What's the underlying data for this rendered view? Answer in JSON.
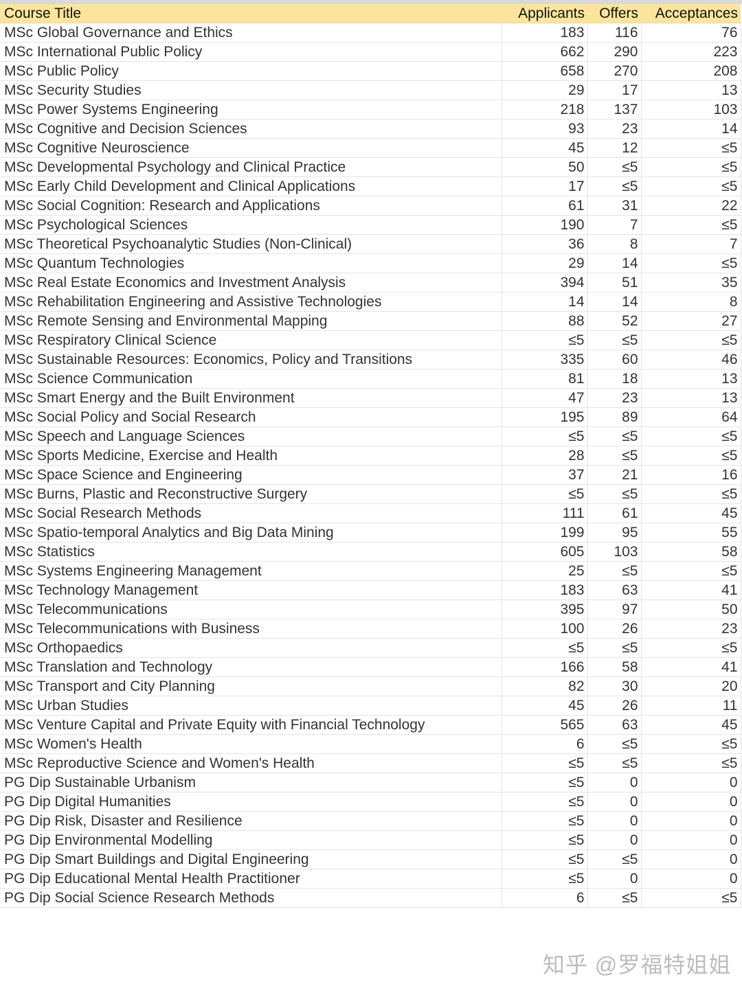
{
  "header": {
    "title": "Course Title",
    "applicants": "Applicants",
    "offers": "Offers",
    "acceptances": "Acceptances"
  },
  "rows": [
    [
      "MSc Global Governance and Ethics",
      "183",
      "116",
      "76"
    ],
    [
      "MSc International Public Policy",
      "662",
      "290",
      "223"
    ],
    [
      "MSc Public Policy",
      "658",
      "270",
      "208"
    ],
    [
      "MSc Security Studies",
      "29",
      "17",
      "13"
    ],
    [
      "MSc Power Systems Engineering",
      "218",
      "137",
      "103"
    ],
    [
      "MSc Cognitive and Decision Sciences",
      "93",
      "23",
      "14"
    ],
    [
      "MSc Cognitive Neuroscience",
      "45",
      "12",
      "≤5"
    ],
    [
      "MSc Developmental Psychology and Clinical Practice",
      "50",
      "≤5",
      "≤5"
    ],
    [
      "MSc Early Child Development and Clinical Applications",
      "17",
      "≤5",
      "≤5"
    ],
    [
      "MSc Social Cognition: Research and Applications",
      "61",
      "31",
      "22"
    ],
    [
      "MSc Psychological Sciences",
      "190",
      "7",
      "≤5"
    ],
    [
      "MSc Theoretical Psychoanalytic Studies (Non-Clinical)",
      "36",
      "8",
      "7"
    ],
    [
      "MSc Quantum Technologies",
      "29",
      "14",
      "≤5"
    ],
    [
      "MSc Real Estate Economics and Investment Analysis",
      "394",
      "51",
      "35"
    ],
    [
      "MSc Rehabilitation Engineering and Assistive Technologies",
      "14",
      "14",
      "8"
    ],
    [
      "MSc Remote Sensing and Environmental Mapping",
      "88",
      "52",
      "27"
    ],
    [
      "MSc Respiratory Clinical Science",
      "≤5",
      "≤5",
      "≤5"
    ],
    [
      "MSc Sustainable Resources: Economics, Policy and Transitions",
      "335",
      "60",
      "46"
    ],
    [
      "MSc Science Communication",
      "81",
      "18",
      "13"
    ],
    [
      "MSc Smart Energy and the Built Environment",
      "47",
      "23",
      "13"
    ],
    [
      "MSc Social Policy and Social Research",
      "195",
      "89",
      "64"
    ],
    [
      "MSc Speech and Language Sciences",
      "≤5",
      "≤5",
      "≤5"
    ],
    [
      "MSc Sports Medicine, Exercise and Health",
      "28",
      "≤5",
      "≤5"
    ],
    [
      "MSc Space Science and Engineering",
      "37",
      "21",
      "16"
    ],
    [
      "MSc Burns, Plastic and Reconstructive Surgery",
      "≤5",
      "≤5",
      "≤5"
    ],
    [
      "MSc Social Research Methods",
      "111",
      "61",
      "45"
    ],
    [
      "MSc Spatio-temporal Analytics and Big Data Mining",
      "199",
      "95",
      "55"
    ],
    [
      "MSc Statistics",
      "605",
      "103",
      "58"
    ],
    [
      "MSc Systems Engineering Management",
      "25",
      "≤5",
      "≤5"
    ],
    [
      "MSc Technology Management",
      "183",
      "63",
      "41"
    ],
    [
      "MSc Telecommunications",
      "395",
      "97",
      "50"
    ],
    [
      "MSc Telecommunications with Business",
      "100",
      "26",
      "23"
    ],
    [
      "MSc Orthopaedics",
      "≤5",
      "≤5",
      "≤5"
    ],
    [
      "MSc Translation and Technology",
      "166",
      "58",
      "41"
    ],
    [
      "MSc Transport and City Planning",
      "82",
      "30",
      "20"
    ],
    [
      "MSc Urban Studies",
      "45",
      "26",
      "11"
    ],
    [
      "MSc Venture Capital and Private Equity with Financial Technology",
      "565",
      "63",
      "45"
    ],
    [
      "MSc Women's Health",
      "6",
      "≤5",
      "≤5"
    ],
    [
      "MSc Reproductive Science and Women's Health",
      "≤5",
      "≤5",
      "≤5"
    ],
    [
      "PG Dip Sustainable Urbanism",
      "≤5",
      "0",
      "0"
    ],
    [
      "PG Dip Digital Humanities",
      "≤5",
      "0",
      "0"
    ],
    [
      "PG Dip Risk, Disaster and Resilience",
      "≤5",
      "0",
      "0"
    ],
    [
      "PG Dip Environmental Modelling",
      "≤5",
      "0",
      "0"
    ],
    [
      "PG Dip Smart Buildings and Digital Engineering",
      "≤5",
      "≤5",
      "0"
    ],
    [
      "PG Dip Educational Mental Health Practitioner",
      "≤5",
      "0",
      "0"
    ],
    [
      "PG Dip Social Science Research Methods",
      "6",
      "≤5",
      "≤5"
    ]
  ],
  "watermark": "知乎 @罗福特姐姐",
  "colors": {
    "header_bg": "#fbe59d",
    "grid": "#e4e4e4"
  }
}
